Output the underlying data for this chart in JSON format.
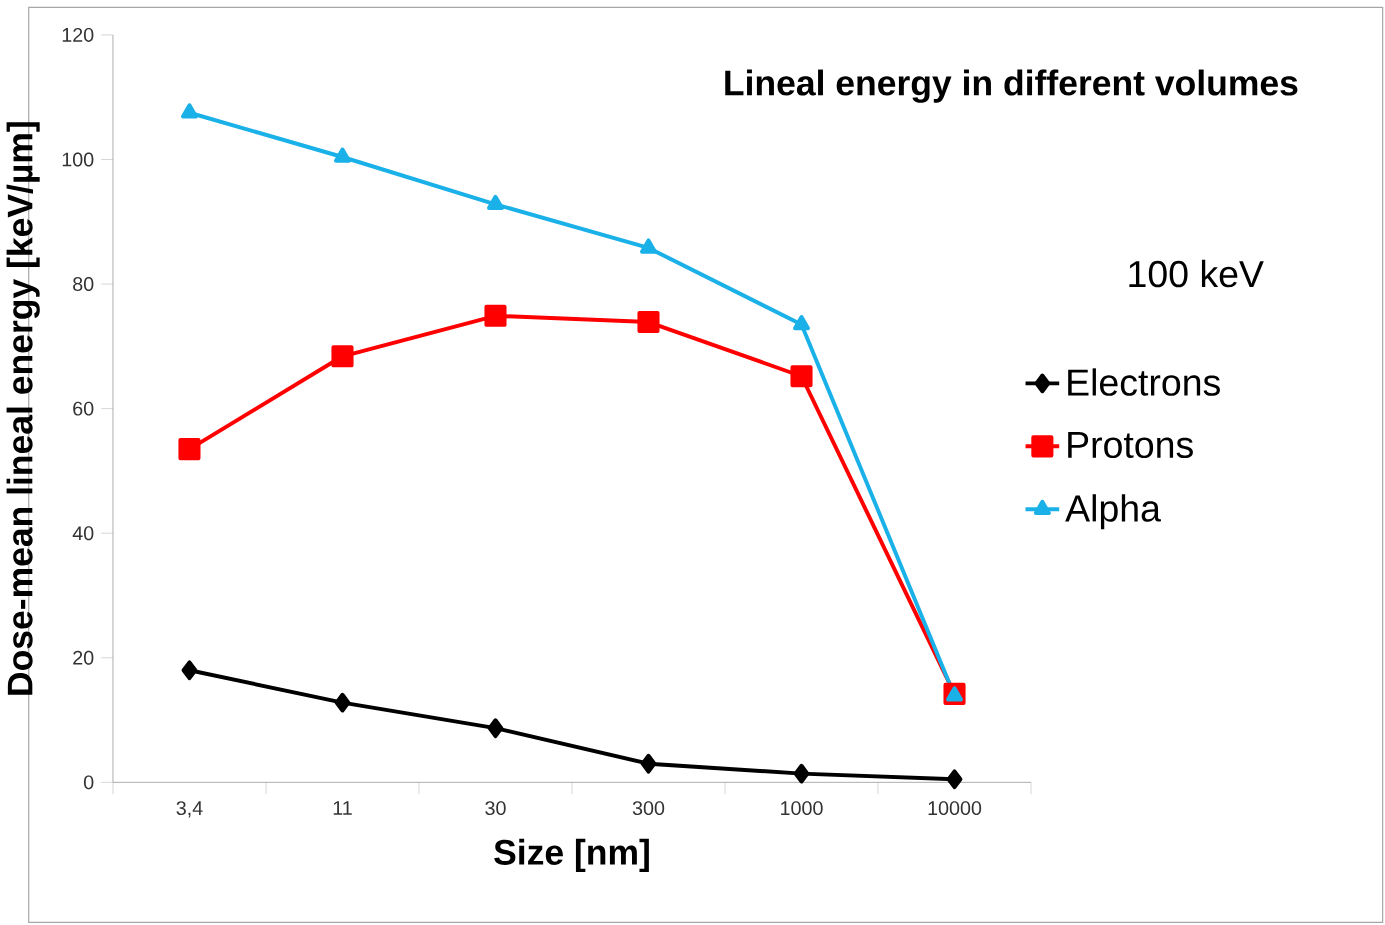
{
  "chart_data": {
    "type": "line",
    "title": "Lineal energy in different volumes",
    "xlabel": "Size [nm]",
    "ylabel": "Dose-mean lineal energy [keV/µm]",
    "annotations": [
      "100 keV"
    ],
    "categories": [
      "3,4",
      "11",
      "30",
      "300",
      "1000",
      "10000"
    ],
    "series": [
      {
        "name": "Electrons",
        "color": "#000000",
        "marker": "diamond",
        "values": [
          18.0,
          12.8,
          8.7,
          3.0,
          1.4,
          0.5
        ]
      },
      {
        "name": "Protons",
        "color": "#ff0000",
        "marker": "square",
        "values": [
          53.5,
          68.4,
          74.9,
          73.9,
          65.2,
          14.2
        ]
      },
      {
        "name": "Alpha",
        "color": "#1ab0e8",
        "marker": "triangle",
        "values": [
          107.5,
          100.4,
          92.8,
          85.8,
          73.5,
          13.9
        ]
      }
    ],
    "ylim": [
      0,
      120
    ],
    "yticks": [
      0,
      20,
      40,
      60,
      80,
      100,
      120
    ],
    "grid": false,
    "legend": "right",
    "line_style": "solid"
  }
}
